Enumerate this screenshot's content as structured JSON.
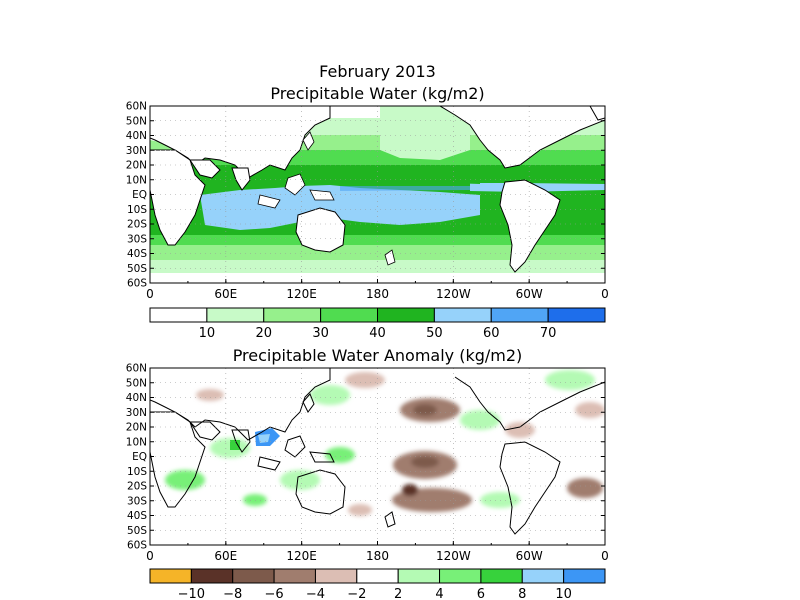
{
  "figure": {
    "title_line1": "February 2013",
    "title_line2": "Precipitable Water (kg/m2)",
    "anomaly_title": "Precipitable Water Anomaly (kg/m2)"
  },
  "lat_labels": [
    "60N",
    "50N",
    "40N",
    "30N",
    "20N",
    "10N",
    "EQ",
    "10S",
    "20S",
    "30S",
    "40S",
    "50S",
    "60S"
  ],
  "lon_labels": [
    "0",
    "60E",
    "120E",
    "180",
    "120W",
    "60W",
    "0"
  ],
  "pw_colorbar": {
    "colors": [
      "#ffffff",
      "#c8fac8",
      "#96f08c",
      "#50dc50",
      "#20b420",
      "#96d2fa",
      "#50a5f5",
      "#1e6eeb"
    ],
    "labels": [
      "10",
      "20",
      "30",
      "40",
      "50",
      "60",
      "70"
    ]
  },
  "anom_colorbar": {
    "colors": [
      "#f5b428",
      "#5a3228",
      "#7d5a4b",
      "#a07d6e",
      "#dcbeb4",
      "#ffffff",
      "#b4fab4",
      "#78f078",
      "#37d23c",
      "#96d2fa",
      "#3c96f5"
    ],
    "labels": [
      "−10",
      "−8",
      "−6",
      "−4",
      "−2",
      "2",
      "4",
      "6",
      "8",
      "10"
    ]
  }
}
